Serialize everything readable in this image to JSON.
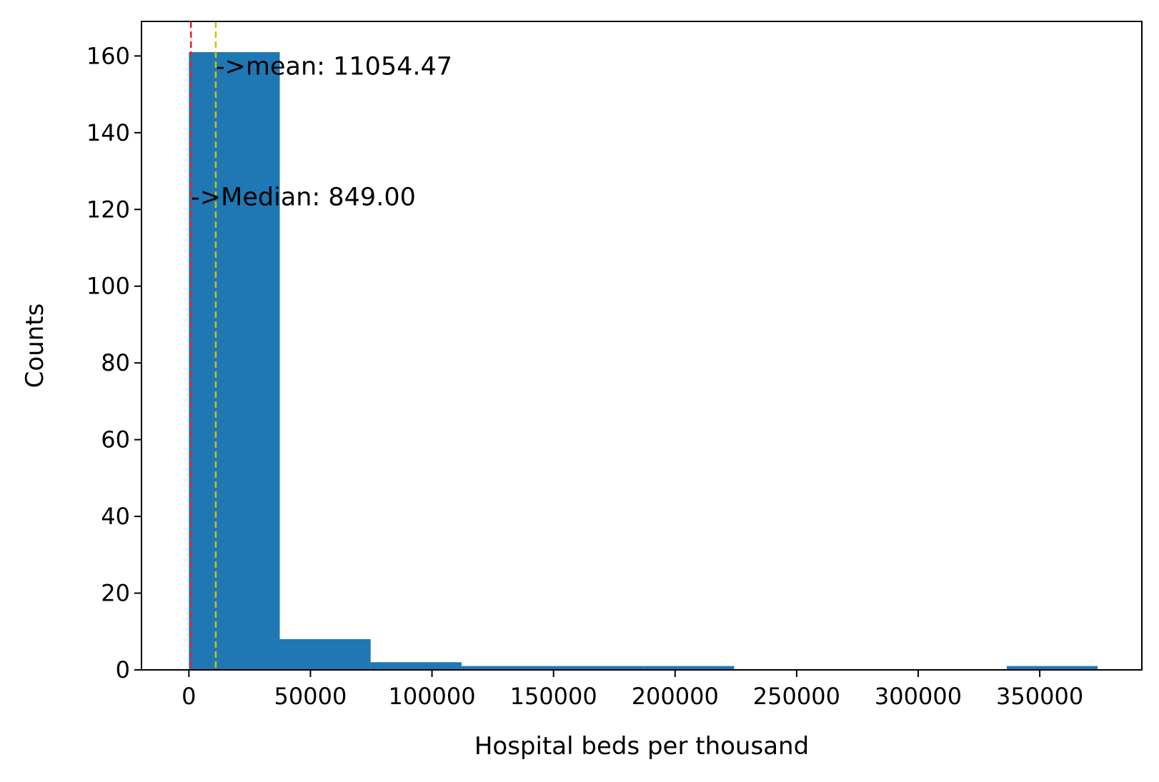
{
  "chart_data": {
    "type": "bar",
    "title": "",
    "xlabel": "Hospital beds per thousand",
    "ylabel": "Counts",
    "xlim": [
      -19500,
      392000
    ],
    "ylim": [
      0,
      169
    ],
    "grid": false,
    "legend": "none",
    "bin_edges": [
      0,
      37380,
      74760,
      112140,
      149520,
      186900,
      224280,
      261660,
      299040,
      336420,
      373800
    ],
    "counts": [
      161,
      8,
      2,
      1,
      1,
      1,
      0,
      0,
      0,
      1
    ],
    "x_ticks": [
      {
        "value": 0,
        "label": "0"
      },
      {
        "value": 50000,
        "label": "50000"
      },
      {
        "value": 100000,
        "label": "100000"
      },
      {
        "value": 150000,
        "label": "150000"
      },
      {
        "value": 200000,
        "label": "200000"
      },
      {
        "value": 250000,
        "label": "250000"
      },
      {
        "value": 300000,
        "label": "300000"
      },
      {
        "value": 350000,
        "label": "350000"
      }
    ],
    "y_ticks": [
      {
        "value": 0,
        "label": "0"
      },
      {
        "value": 20,
        "label": "20"
      },
      {
        "value": 40,
        "label": "40"
      },
      {
        "value": 60,
        "label": "60"
      },
      {
        "value": 80,
        "label": "80"
      },
      {
        "value": 100,
        "label": "100"
      },
      {
        "value": 120,
        "label": "120"
      },
      {
        "value": 140,
        "label": "140"
      },
      {
        "value": 160,
        "label": "160"
      }
    ],
    "reference_lines": [
      {
        "name": "median",
        "value": 849.0,
        "color": "#e8202a",
        "label": "->Median: 849.00",
        "label_y": 120
      },
      {
        "name": "mean",
        "value": 11054.47,
        "color": "#c8c400",
        "label": "->mean: 11054.47",
        "label_y": 154
      }
    ],
    "colors": {
      "bar": "#1f77b4",
      "axes": "#000000"
    }
  }
}
